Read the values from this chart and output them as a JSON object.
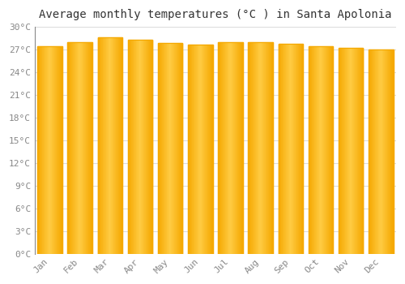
{
  "months": [
    "Jan",
    "Feb",
    "Mar",
    "Apr",
    "May",
    "Jun",
    "Jul",
    "Aug",
    "Sep",
    "Oct",
    "Nov",
    "Dec"
  ],
  "values": [
    27.5,
    28.0,
    28.6,
    28.3,
    27.9,
    27.7,
    28.0,
    28.0,
    27.8,
    27.5,
    27.2,
    27.0
  ],
  "bar_color_center": "#FFCC44",
  "bar_color_edge": "#F5A800",
  "title": "Average monthly temperatures (°C ) in Santa Apolonia",
  "ylim": [
    0,
    30
  ],
  "ytick_step": 3,
  "background_color": "#FFFFFF",
  "plot_bg_color": "#FFFFFF",
  "grid_color": "#DDDDDD",
  "title_fontsize": 10,
  "tick_fontsize": 8,
  "tick_color": "#888888",
  "bar_width": 0.82
}
